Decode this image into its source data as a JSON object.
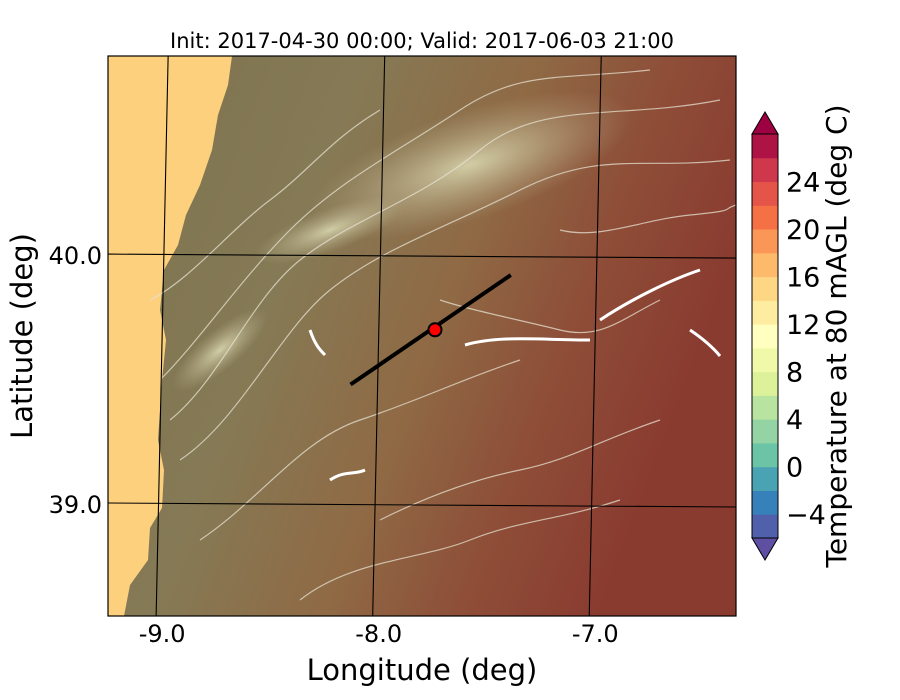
{
  "chart_data": {
    "type": "heatmap",
    "title": "Init: 2017-04-30 00:00; Valid: 2017-06-03 21:00",
    "xlabel": "Longitude (deg)",
    "ylabel": "Latitude (deg)",
    "xlim": [
      -9.25,
      -6.35
    ],
    "ylim": [
      38.55,
      40.8
    ],
    "x_ticks": [
      -9.0,
      -8.0,
      -7.0
    ],
    "x_tick_labels": [
      "-9.0",
      "-8.0",
      "-7.0"
    ],
    "y_ticks": [
      39.0,
      40.0
    ],
    "y_tick_labels": [
      "39.0",
      "40.0"
    ],
    "grid": true,
    "colorbar": {
      "label": "Temperature at 80 mAGL (deg C)",
      "min": -6,
      "max": 28,
      "step": 2,
      "ticks": [
        -4,
        0,
        4,
        8,
        12,
        16,
        20,
        24
      ],
      "tick_labels": [
        "−4",
        "0",
        "4",
        "8",
        "12",
        "16",
        "20",
        "24"
      ],
      "extend": "both",
      "colormap": "Spectral_r"
    },
    "cross_section_line": {
      "start": [
        -8.13,
        39.48
      ],
      "end": [
        -7.39,
        39.92
      ],
      "color": "#000000"
    },
    "marker": {
      "lon": -7.74,
      "lat": 39.7,
      "color": "#ff0000"
    },
    "ocean_color": "#fdd07e",
    "land_overlay_color": "#7a7050"
  }
}
